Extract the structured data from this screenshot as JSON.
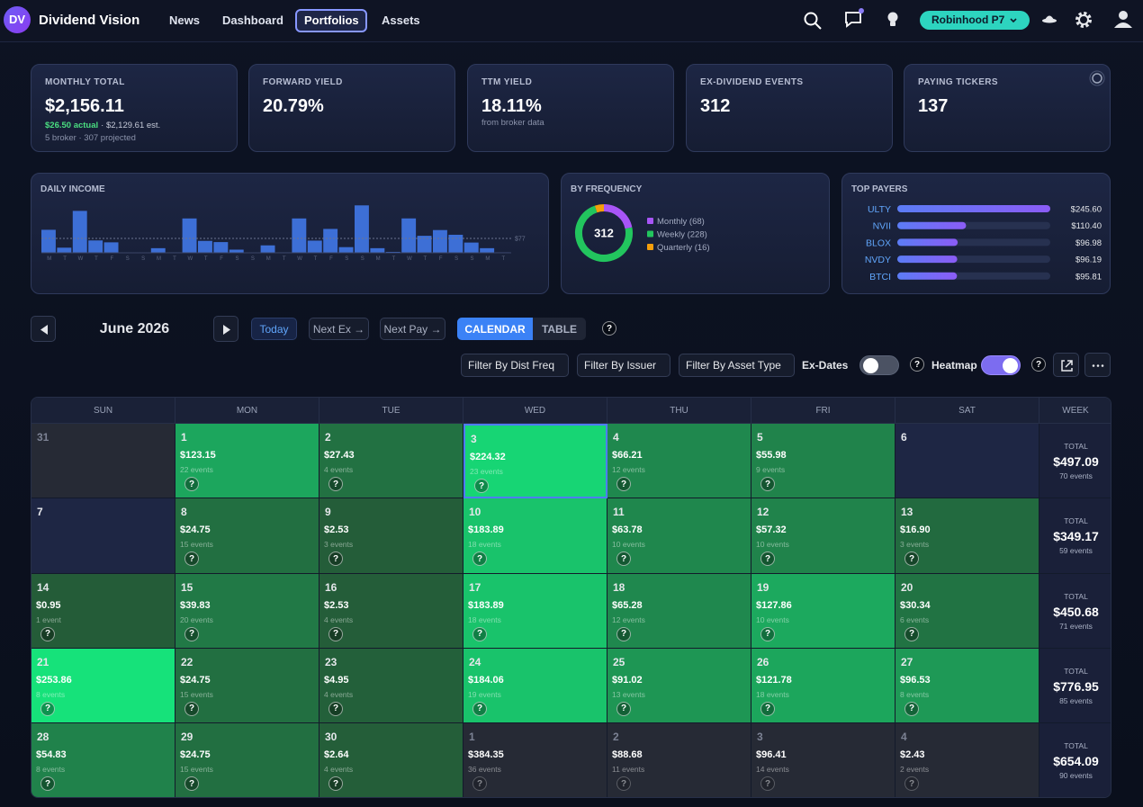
{
  "nav": {
    "logo": "DV",
    "brand": "Dividend Vision",
    "links": [
      "News",
      "Dashboard",
      "Portfolios",
      "Assets"
    ],
    "active_link": 2,
    "account": "Robinhood P7"
  },
  "stats": [
    {
      "label": "MONTHLY TOTAL",
      "value": "$2,156.11",
      "actual": "$26.50 actual",
      "estimate": "· $2,129.61 est.",
      "note": "5 broker · 307 projected"
    },
    {
      "label": "FORWARD YIELD",
      "value": "20.79%"
    },
    {
      "label": "TTM YIELD",
      "value": "18.11%",
      "note": "from broker data"
    },
    {
      "label": "EX-DIVIDEND EVENTS",
      "value": "312"
    },
    {
      "label": "PAYING TICKERS",
      "value": "137"
    }
  ],
  "daily_income": {
    "title": "DAILY INCOME",
    "day_letters": [
      "M",
      "T",
      "W",
      "T",
      "F",
      "S",
      "S",
      "M",
      "T",
      "W",
      "T",
      "F",
      "S",
      "S",
      "M",
      "T",
      "W",
      "T",
      "F",
      "S",
      "S",
      "M",
      "T",
      "W",
      "T",
      "F",
      "S",
      "S",
      "M",
      "T"
    ],
    "ylim": [
      0,
      260
    ],
    "average": {
      "value": 77,
      "label": "$77"
    },
    "color": "#3d6fd6"
  },
  "frequency": {
    "title": "BY FREQUENCY",
    "total": 312,
    "items": [
      {
        "name": "Monthly",
        "value": 68,
        "label": "Monthly (68)",
        "color": "#a855f7"
      },
      {
        "name": "Weekly",
        "value": 228,
        "label": "Weekly (228)",
        "color": "#22c55e"
      },
      {
        "name": "Quarterly",
        "value": 16,
        "label": "Quarterly (16)",
        "color": "#f59e0b"
      }
    ]
  },
  "top_payers": {
    "title": "TOP PAYERS",
    "xlim": [
      0,
      245.6
    ],
    "rows": [
      {
        "ticker": "ULTY",
        "value": 245.6,
        "label": "$245.60"
      },
      {
        "ticker": "NVII",
        "value": 110.4,
        "label": "$110.40"
      },
      {
        "ticker": "BLOX",
        "value": 96.98,
        "label": "$96.98"
      },
      {
        "ticker": "NVDY",
        "value": 96.19,
        "label": "$96.19"
      },
      {
        "ticker": "BTCI",
        "value": 95.81,
        "label": "$95.81"
      }
    ]
  },
  "help_icon": "?",
  "controls": {
    "month": "June 2026",
    "today": "Today",
    "next_ex": "Next Ex →",
    "next_pay": "Next Pay →",
    "tabs": [
      "CALENDAR",
      "TABLE"
    ],
    "active_tab": 0,
    "filters": [
      "Filter By Dist Freq",
      "Filter By Issuer",
      "Filter By Asset Type"
    ],
    "ex_dates": "Ex-Dates",
    "ex_dates_on": false,
    "heatmap": "Heatmap",
    "heatmap_on": true
  },
  "calendar": {
    "headers": [
      "SUN",
      "MON",
      "TUE",
      "WED",
      "THU",
      "FRI",
      "SAT",
      "WEEK"
    ],
    "total_label": "TOTAL",
    "weeks": [
      {
        "days": [
          {
            "day": 31,
            "in_month": false
          },
          {
            "day": 1,
            "value": 123.15,
            "value_label": "$123.15",
            "events": "22 events"
          },
          {
            "day": 2,
            "value": 27.43,
            "value_label": "$27.43",
            "events": "4 events"
          },
          {
            "day": 3,
            "value": 224.32,
            "value_label": "$224.32",
            "events": "23 events",
            "today": true
          },
          {
            "day": 4,
            "value": 66.21,
            "value_label": "$66.21",
            "events": "12 events"
          },
          {
            "day": 5,
            "value": 55.98,
            "value_label": "$55.98",
            "events": "9 events"
          },
          {
            "day": 6
          }
        ],
        "total": "$497.09",
        "events": "70 events"
      },
      {
        "days": [
          {
            "day": 7
          },
          {
            "day": 8,
            "value": 24.75,
            "value_label": "$24.75",
            "events": "15 events"
          },
          {
            "day": 9,
            "value": 2.53,
            "value_label": "$2.53",
            "events": "3 events"
          },
          {
            "day": 10,
            "value": 183.89,
            "value_label": "$183.89",
            "events": "18 events"
          },
          {
            "day": 11,
            "value": 63.78,
            "value_label": "$63.78",
            "events": "10 events"
          },
          {
            "day": 12,
            "value": 57.32,
            "value_label": "$57.32",
            "events": "10 events"
          },
          {
            "day": 13,
            "value": 16.9,
            "value_label": "$16.90",
            "events": "3 events"
          }
        ],
        "total": "$349.17",
        "events": "59 events"
      },
      {
        "days": [
          {
            "day": 14,
            "value": 0.95,
            "value_label": "$0.95",
            "events": "1 event"
          },
          {
            "day": 15,
            "value": 39.83,
            "value_label": "$39.83",
            "events": "20 events"
          },
          {
            "day": 16,
            "value": 2.53,
            "value_label": "$2.53",
            "events": "4 events"
          },
          {
            "day": 17,
            "value": 183.89,
            "value_label": "$183.89",
            "events": "18 events"
          },
          {
            "day": 18,
            "value": 65.28,
            "value_label": "$65.28",
            "events": "12 events"
          },
          {
            "day": 19,
            "value": 127.86,
            "value_label": "$127.86",
            "events": "10 events"
          },
          {
            "day": 20,
            "value": 30.34,
            "value_label": "$30.34",
            "events": "6 events"
          }
        ],
        "total": "$450.68",
        "events": "71 events"
      },
      {
        "days": [
          {
            "day": 21,
            "value": 253.86,
            "value_label": "$253.86",
            "events": "8 events"
          },
          {
            "day": 22,
            "value": 24.75,
            "value_label": "$24.75",
            "events": "15 events"
          },
          {
            "day": 23,
            "value": 4.95,
            "value_label": "$4.95",
            "events": "4 events"
          },
          {
            "day": 24,
            "value": 184.06,
            "value_label": "$184.06",
            "events": "19 events"
          },
          {
            "day": 25,
            "value": 91.02,
            "value_label": "$91.02",
            "events": "13 events"
          },
          {
            "day": 26,
            "value": 121.78,
            "value_label": "$121.78",
            "events": "18 events"
          },
          {
            "day": 27,
            "value": 96.53,
            "value_label": "$96.53",
            "events": "8 events"
          }
        ],
        "total": "$776.95",
        "events": "85 events"
      },
      {
        "days": [
          {
            "day": 28,
            "value": 54.83,
            "value_label": "$54.83",
            "events": "8 events"
          },
          {
            "day": 29,
            "value": 24.75,
            "value_label": "$24.75",
            "events": "15 events"
          },
          {
            "day": 30,
            "value": 2.64,
            "value_label": "$2.64",
            "events": "4 events"
          },
          {
            "day": 1,
            "in_month": false,
            "value": 384.35,
            "value_label": "$384.35",
            "events": "36 events"
          },
          {
            "day": 2,
            "in_month": false,
            "value": 88.68,
            "value_label": "$88.68",
            "events": "11 events"
          },
          {
            "day": 3,
            "in_month": false,
            "value": 96.41,
            "value_label": "$96.41",
            "events": "14 events"
          },
          {
            "day": 4,
            "in_month": false,
            "value": 2.43,
            "value_label": "$2.43",
            "events": "2 events"
          }
        ],
        "total": "$654.09",
        "events": "90 events"
      }
    ]
  }
}
